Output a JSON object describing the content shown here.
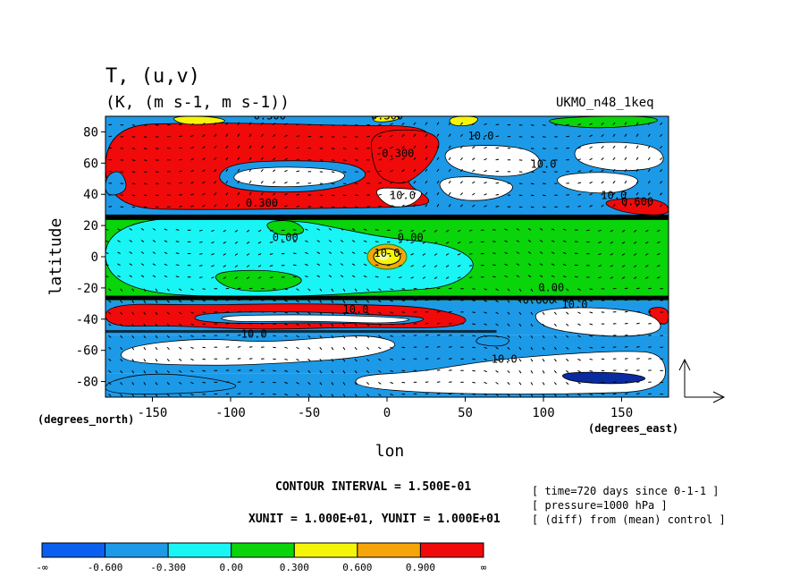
{
  "header": {
    "title": "T, (u,v)",
    "units": "(K, (m s-1, m s-1))",
    "model": "UKMO_n48_1keq"
  },
  "footer": {
    "contour_interval": "CONTOUR INTERVAL = 1.500E-01",
    "vector_units": "XUNIT = 1.000E+01, YUNIT = 1.000E+01",
    "info": [
      "[ time=720 days since 0-1-1 ]",
      "[ pressure=1000 hPa ]",
      "[ (diff) from (mean) control ]"
    ]
  },
  "colorbar": {
    "colors": [
      "#0a5ff0",
      "#1c9ae8",
      "#19f5f5",
      "#0ad40a",
      "#f5f50a",
      "#f5a50a",
      "#f00a0a"
    ],
    "labels": [
      "-∞",
      "-0.600",
      "-0.300",
      "0.00",
      "0.300",
      "0.600",
      "0.900",
      "∞"
    ]
  },
  "chart_data": {
    "type": "heatmap",
    "title": "T, (u,v)",
    "subtitle": "(K, (m s-1, m s-1))",
    "xlabel": "lon",
    "ylabel": "latitude",
    "x_units_label": "(degrees_east)",
    "y_units_label": "(degrees_north)",
    "xlim": [
      -180,
      180
    ],
    "ylim": [
      -90,
      90
    ],
    "xticks": [
      -150,
      -100,
      -50,
      0,
      50,
      100,
      150
    ],
    "yticks": [
      80,
      60,
      40,
      20,
      0,
      -20,
      -40,
      -60,
      -80
    ],
    "levels": [
      -0.6,
      -0.3,
      0.0,
      0.3,
      0.6,
      0.9
    ],
    "bands": [
      {
        "lat": [
          -90,
          -75
        ],
        "value": -0.45,
        "pattern": "white-patches"
      },
      {
        "lat": [
          -75,
          -50
        ],
        "value": -0.45,
        "pattern": "white-patches"
      },
      {
        "lat": [
          -50,
          -28
        ],
        "value": 1.2,
        "pattern": "red-band"
      },
      {
        "lat": [
          -28,
          26
        ],
        "value": 0.15,
        "pattern": "cyan-west-green-east"
      },
      {
        "lat": [
          26,
          90
        ],
        "value": 1.2,
        "pattern": "red-west-blue-east"
      }
    ],
    "features": [
      {
        "name": "equatorial maximum",
        "lon": 0,
        "lat": 0,
        "value": 0.45
      },
      {
        "name": "southern red band",
        "lon": [
          -180,
          50
        ],
        "lat": [
          -48,
          -28
        ],
        "value": 1.2
      },
      {
        "name": "northern red region",
        "lon": [
          -180,
          30
        ],
        "lat": [
          30,
          85
        ],
        "value": 1.2
      }
    ],
    "contour_labels": [
      {
        "text": "0.300",
        "lon": -75,
        "lat": 88
      },
      {
        "text": "0.300",
        "lon": 0,
        "lat": 88
      },
      {
        "text": "0.300",
        "lon": -80,
        "lat": 32
      },
      {
        "text": "0.00",
        "lon": -65,
        "lat": 10
      },
      {
        "text": "0.00",
        "lon": 15,
        "lat": 10
      },
      {
        "text": "-0.300",
        "lon": 5,
        "lat": 64
      },
      {
        "text": "10.0",
        "lon": 60,
        "lat": 75
      },
      {
        "text": "10.0",
        "lon": 100,
        "lat": 57
      },
      {
        "text": "10.0",
        "lon": 10,
        "lat": 37
      },
      {
        "text": "10.0",
        "lon": 145,
        "lat": 37
      },
      {
        "text": "0.600",
        "lon": 160,
        "lat": 33
      },
      {
        "text": "10.0",
        "lon": 0,
        "lat": 0
      },
      {
        "text": "0.00",
        "lon": 105,
        "lat": -22
      },
      {
        "text": "-0.600",
        "lon": 95,
        "lat": -30
      },
      {
        "text": "10.0",
        "lon": 120,
        "lat": -33
      },
      {
        "text": "10.0",
        "lon": -20,
        "lat": -36
      },
      {
        "text": "10.0",
        "lon": -85,
        "lat": -52
      },
      {
        "text": "10.0",
        "lon": 75,
        "lat": -68
      }
    ],
    "vector_field": {
      "variable": "(u,v)",
      "x_unit": 10.0,
      "y_unit": 10.0
    },
    "contour_interval": 0.15,
    "time": "720 days since 0-1-1",
    "pressure_hPa": 1000,
    "diff_from": "(mean) control",
    "source": "UKMO_n48_1keq"
  }
}
